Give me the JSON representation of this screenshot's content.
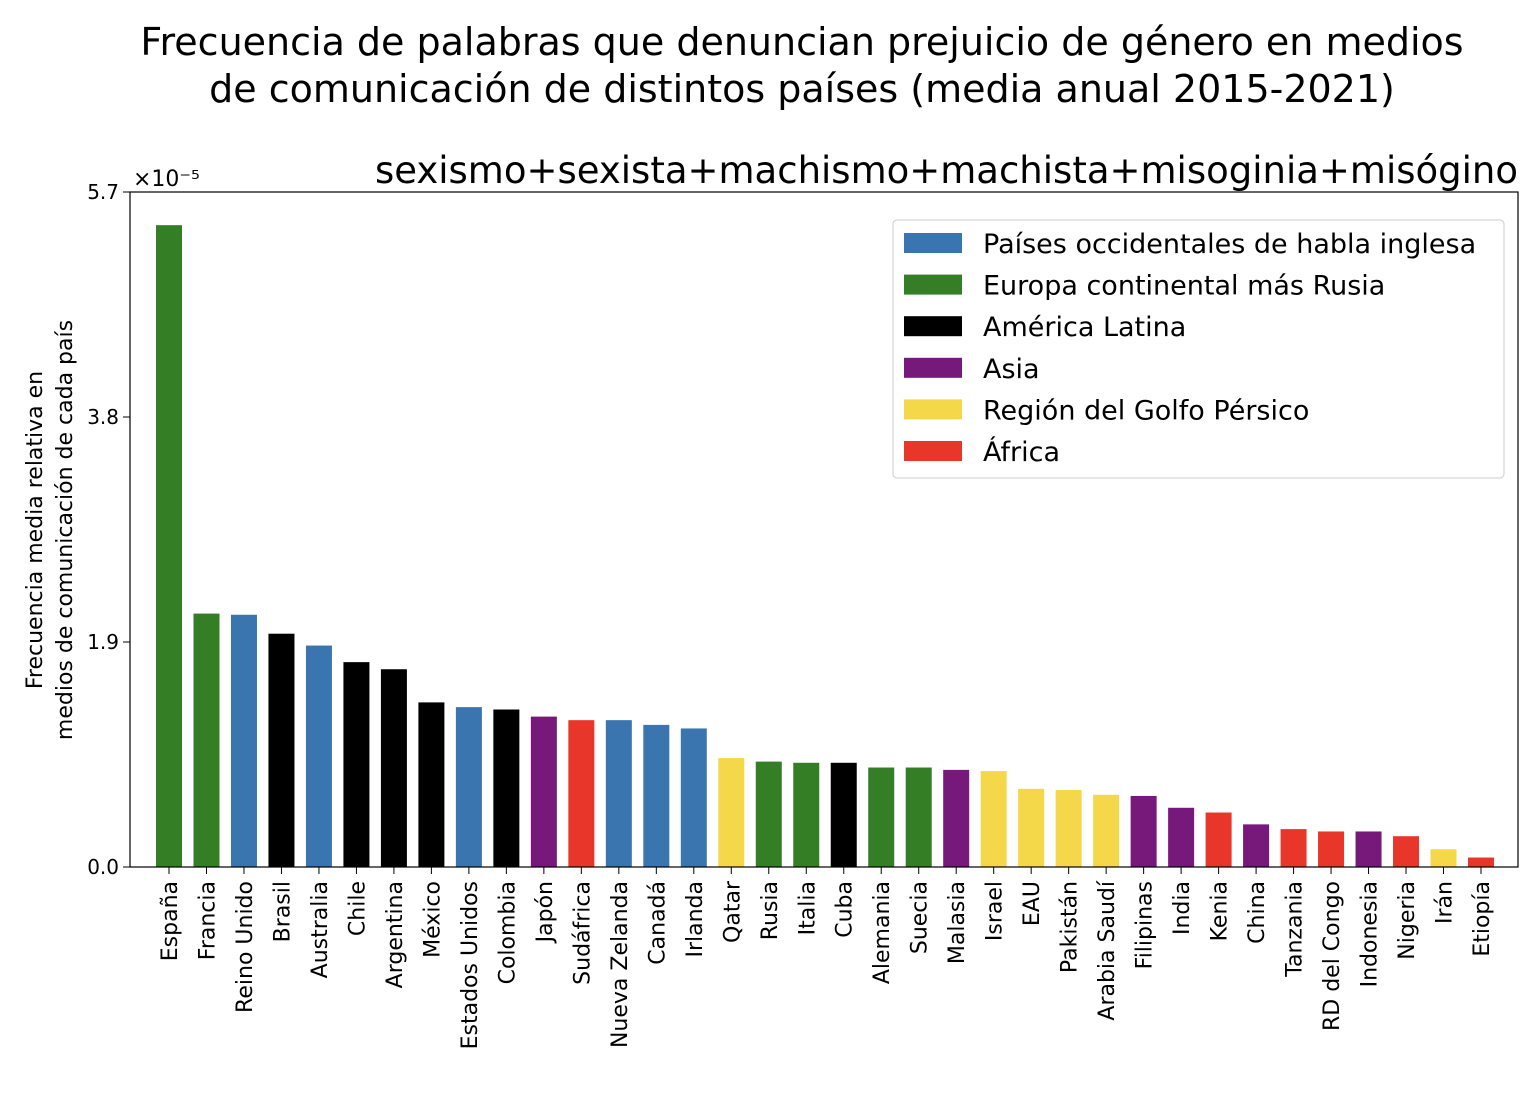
{
  "chart_data": {
    "type": "bar",
    "title": "Frecuencia de palabras que denuncian prejuicio de género en medios de comunicación de distintos países (media anual 2015-2021)",
    "title_lines": [
      "Frecuencia de palabras que denuncian prejuicio de género en medios",
      "de comunicación de distintos países (media anual 2015-2021)"
    ],
    "subtitle": "sexismo+sexista+machismo+machista+misoginia+misógino",
    "ylabel_lines": [
      "Frecuencia media relativa en",
      "medios de comunicación de cada país"
    ],
    "ylabel": "Frecuencia media relativa en medios de comunicación de cada país",
    "xlabel": "",
    "y_multiplier": "×10⁻⁵",
    "ylim": [
      0,
      5.7
    ],
    "yticks": [
      "0.0",
      "1.9",
      "3.8",
      "5.7"
    ],
    "grid": false,
    "legend_placement": "top-right",
    "groups": [
      {
        "name": "Países occidentales de habla inglesa",
        "color": "#3b75af"
      },
      {
        "name": "Europa continental más Rusia",
        "color": "#347e26"
      },
      {
        "name": "América Latina",
        "color": "#000000"
      },
      {
        "name": "Asia",
        "color": "#76197a"
      },
      {
        "name": "Región del Golfo Pérsico",
        "color": "#f5d84a"
      },
      {
        "name": "África",
        "color": "#e8362a"
      }
    ],
    "categories": [
      "España",
      "Francia",
      "Reino Unido",
      "Brasil",
      "Australia",
      "Chile",
      "Argentina",
      "México",
      "Estados Unidos",
      "Colombia",
      "Japón",
      "Sudáfrica",
      "Nueva Zelanda",
      "Canadá",
      "Irlanda",
      "Qatar",
      "Rusia",
      "Italia",
      "Cuba",
      "Alemania",
      "Suecia",
      "Malasia",
      "Israel",
      "EAU",
      "Pakistán",
      "Arabia Saudí",
      "Filipinas",
      "India",
      "Kenia",
      "China",
      "Tanzania",
      "RD del Congo",
      "Indonesia",
      "Nigeria",
      "Irán",
      "Etiopía"
    ],
    "values": [
      5.42,
      2.14,
      2.13,
      1.97,
      1.87,
      1.73,
      1.67,
      1.39,
      1.35,
      1.33,
      1.27,
      1.24,
      1.24,
      1.2,
      1.17,
      0.92,
      0.89,
      0.88,
      0.88,
      0.84,
      0.84,
      0.82,
      0.81,
      0.66,
      0.65,
      0.61,
      0.6,
      0.5,
      0.46,
      0.36,
      0.32,
      0.3,
      0.3,
      0.26,
      0.15,
      0.08
    ],
    "group_index": [
      1,
      1,
      0,
      2,
      0,
      2,
      2,
      2,
      0,
      2,
      3,
      5,
      0,
      0,
      0,
      4,
      1,
      1,
      2,
      1,
      1,
      3,
      4,
      4,
      4,
      4,
      3,
      3,
      5,
      3,
      5,
      5,
      3,
      5,
      4,
      5
    ]
  }
}
